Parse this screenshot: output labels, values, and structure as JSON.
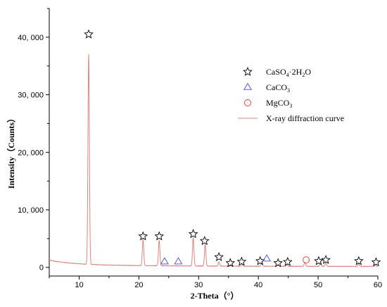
{
  "chart_data": {
    "type": "line",
    "title": "",
    "xlabel": "2-Theta（°）",
    "ylabel": "Intensity（Counts）",
    "xlim": [
      5,
      60
    ],
    "ylim": [
      -1500,
      45000
    ],
    "xticks": [
      10,
      20,
      30,
      40,
      50,
      60
    ],
    "xtick_labels": [
      "10",
      "20",
      "30",
      "40",
      "50",
      "60"
    ],
    "yticks": [
      0,
      10000,
      20000,
      30000,
      40000
    ],
    "ytick_labels": [
      "0",
      "10, 000",
      "20, 000",
      "30, 000",
      "40, 000"
    ],
    "grid": false,
    "legend_position": "upper-right",
    "line_color": "#d9867f",
    "baseline": [
      [
        5,
        1300
      ],
      [
        6,
        1050
      ],
      [
        8,
        800
      ],
      [
        10,
        620
      ],
      [
        11,
        560
      ],
      [
        14,
        430
      ],
      [
        18,
        350
      ],
      [
        22,
        300
      ],
      [
        26,
        265
      ],
      [
        30,
        240
      ],
      [
        35,
        215
      ],
      [
        40,
        200
      ],
      [
        45,
        190
      ],
      [
        50,
        180
      ],
      [
        55,
        175
      ],
      [
        60,
        170
      ]
    ],
    "peaks": [
      {
        "x": 11.6,
        "y": 36500,
        "w": 0.12
      },
      {
        "x": 20.7,
        "y": 4500,
        "w": 0.12
      },
      {
        "x": 23.4,
        "y": 4400,
        "w": 0.12
      },
      {
        "x": 29.1,
        "y": 4900,
        "w": 0.12
      },
      {
        "x": 31.1,
        "y": 3800,
        "w": 0.12
      },
      {
        "x": 33.4,
        "y": 700,
        "w": 0.12
      },
      {
        "x": 35.5,
        "y": 250,
        "w": 0.12
      },
      {
        "x": 37.3,
        "y": 300,
        "w": 0.12
      },
      {
        "x": 40.6,
        "y": 650,
        "w": 0.12
      },
      {
        "x": 43.3,
        "y": 350,
        "w": 0.12
      },
      {
        "x": 44.8,
        "y": 300,
        "w": 0.12
      },
      {
        "x": 47.8,
        "y": 700,
        "w": 0.12
      },
      {
        "x": 50.4,
        "y": 500,
        "w": 0.12
      },
      {
        "x": 51.3,
        "y": 550,
        "w": 0.12
      },
      {
        "x": 56.8,
        "y": 450,
        "w": 0.12
      },
      {
        "x": 59.6,
        "y": 300,
        "w": 0.12
      }
    ],
    "markers": [
      {
        "type": "star",
        "x": 11.6,
        "y": 40500
      },
      {
        "type": "star",
        "x": 20.7,
        "y": 5400
      },
      {
        "type": "star",
        "x": 23.4,
        "y": 5400
      },
      {
        "type": "star",
        "x": 29.1,
        "y": 5800
      },
      {
        "type": "star",
        "x": 31.0,
        "y": 4600
      },
      {
        "type": "star",
        "x": 33.4,
        "y": 1800
      },
      {
        "type": "star",
        "x": 35.3,
        "y": 750
      },
      {
        "type": "star",
        "x": 37.2,
        "y": 1000
      },
      {
        "type": "star",
        "x": 40.3,
        "y": 1100
      },
      {
        "type": "star",
        "x": 43.3,
        "y": 750
      },
      {
        "type": "star",
        "x": 44.9,
        "y": 950
      },
      {
        "type": "star",
        "x": 50.1,
        "y": 1100
      },
      {
        "type": "star",
        "x": 51.3,
        "y": 1300
      },
      {
        "type": "star",
        "x": 56.8,
        "y": 1100
      },
      {
        "type": "star",
        "x": 59.7,
        "y": 900
      },
      {
        "type": "triangle",
        "x": 24.3,
        "y": 1000
      },
      {
        "type": "triangle",
        "x": 26.6,
        "y": 1000
      },
      {
        "type": "triangle",
        "x": 41.4,
        "y": 1500
      },
      {
        "type": "circle",
        "x": 48.0,
        "y": 1300
      }
    ],
    "legend": [
      {
        "type": "star",
        "label": "CaSO",
        "label_sub": "4",
        "label_rest": "·2H",
        "label_sub2": "2",
        "label_end": "O",
        "color": "#000000"
      },
      {
        "type": "triangle",
        "label": "CaCO",
        "label_sub": "3",
        "color": "#5b5bd6"
      },
      {
        "type": "circle",
        "label": "MgCO",
        "label_sub": "3",
        "color": "#d94a3a"
      },
      {
        "type": "line",
        "label": "X-ray diffraction curve",
        "color": "#d9867f"
      }
    ],
    "colors": {
      "star": "#000000",
      "triangle": "#5b5bd6",
      "circle": "#d94a3a",
      "curve": "#d9867f"
    }
  }
}
